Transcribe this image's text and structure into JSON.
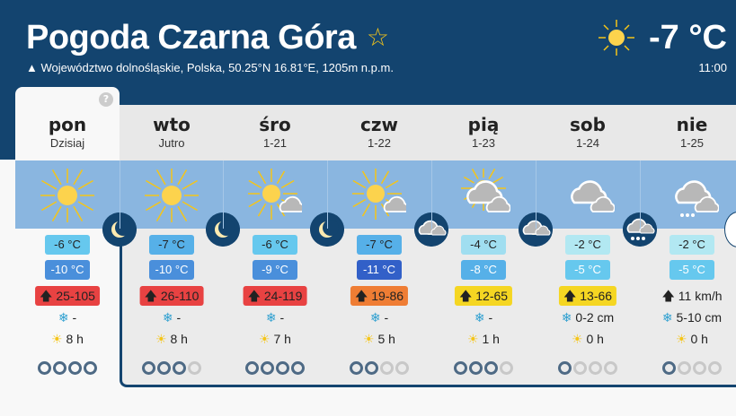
{
  "header": {
    "title": "Pogoda Czarna Góra",
    "subtitle": "Województwo dolnośląskie, Polska, 50.25°N 16.81°E, 1205m n.p.m.",
    "current_temp": "-7 °C",
    "current_time": "11:00",
    "current_icon": "sun-icon",
    "favorite_icon": "star-icon",
    "help": "?"
  },
  "colors": {
    "header": "#13446f",
    "band": "#8ab6e0"
  },
  "days": [
    {
      "name": "pon",
      "sub": "Dzisiaj",
      "icon": "sun",
      "hi": "-6 °C",
      "hi_bg": "#66c8ee",
      "lo": "-10 °C",
      "lo_bg": "#4a8fdb",
      "wind": "25-105",
      "wind_bg": "#e84242",
      "snow": "-",
      "sun": "8 h",
      "rating": 4,
      "night": "moon"
    },
    {
      "name": "wto",
      "sub": "Jutro",
      "icon": "sun",
      "hi": "-7 °C",
      "hi_bg": "#56b0e8",
      "lo": "-10 °C",
      "lo_bg": "#4a8fdb",
      "wind": "26-110",
      "wind_bg": "#e84242",
      "snow": "-",
      "sun": "8 h",
      "rating": 3,
      "night": "moon"
    },
    {
      "name": "śro",
      "sub": "1-21",
      "icon": "sun-cloud",
      "hi": "-6 °C",
      "hi_bg": "#66c8ee",
      "lo": "-9 °C",
      "lo_bg": "#4a8fdb",
      "wind": "24-119",
      "wind_bg": "#e84242",
      "snow": "-",
      "sun": "7 h",
      "rating": 4,
      "night": "moon"
    },
    {
      "name": "czw",
      "sub": "1-22",
      "icon": "sun-cloud",
      "hi": "-7 °C",
      "hi_bg": "#56b0e8",
      "lo": "-11 °C",
      "lo_bg": "#3260c8",
      "wind": "19-86",
      "wind_bg": "#ef7d34",
      "snow": "-",
      "sun": "5 h",
      "rating": 2,
      "night": "moon-cloud"
    },
    {
      "name": "pią",
      "sub": "1-23",
      "icon": "cloud-sun",
      "hi": "-4 °C",
      "hi_bg": "#a0def0",
      "lo": "-8 °C",
      "lo_bg": "#56b0e8",
      "wind": "12-65",
      "wind_bg": "#f5d622",
      "snow": "-",
      "sun": "1 h",
      "rating": 3,
      "night": "moon-cloud"
    },
    {
      "name": "sob",
      "sub": "1-24",
      "icon": "cloud",
      "hi": "-2 °C",
      "hi_bg": "#b2e8f2",
      "lo": "-5 °C",
      "lo_bg": "#66c8ee",
      "wind": "13-66",
      "wind_bg": "#f5d622",
      "snow": "0-2 cm",
      "sun": "0 h",
      "rating": 1,
      "night": "cloud-snow"
    },
    {
      "name": "nie",
      "sub": "1-25",
      "icon": "cloud-snow",
      "hi": "-2 °C",
      "hi_bg": "#b2e8f2",
      "lo": "-5 °C",
      "lo_bg": "#66c8ee",
      "wind": "11 km/h",
      "wind_bg": "",
      "snow": "5-10 cm",
      "sun": "0 h",
      "rating": 1
    }
  ]
}
